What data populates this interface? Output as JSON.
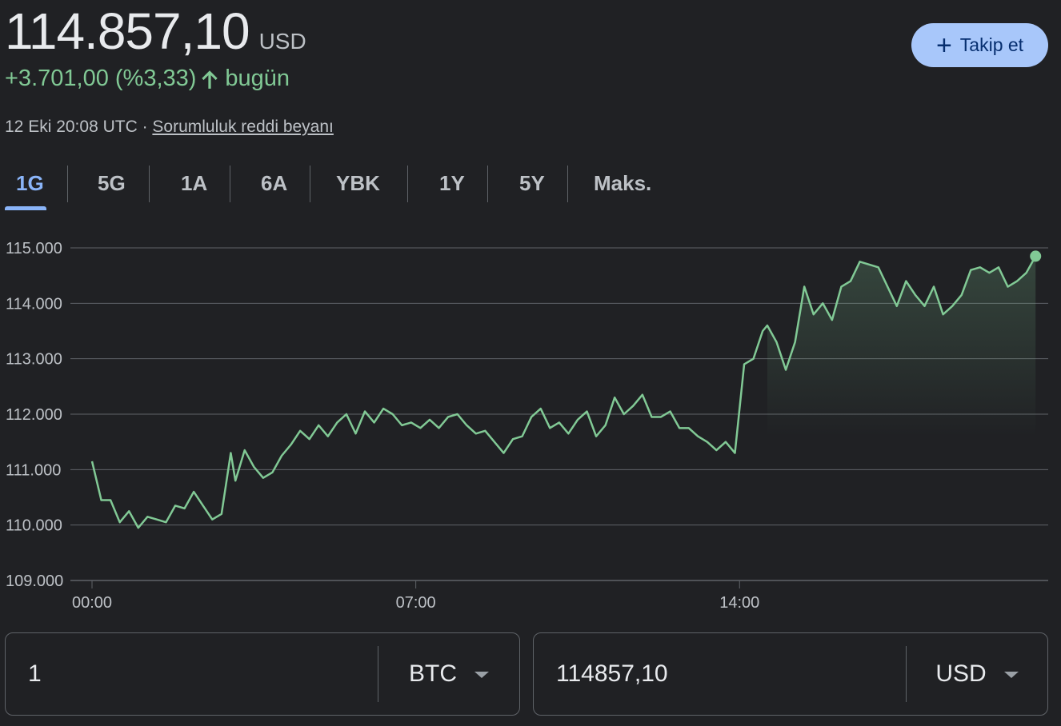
{
  "header": {
    "price": "114.857,10",
    "currency": "USD",
    "change_value": "+3.701,00 (%3,33)",
    "change_period": "bugün",
    "timestamp": "12 Eki 20:08 UTC · ",
    "disclaimer_link": "Sorumluluk reddi beyanı",
    "follow_label": "Takip et"
  },
  "tabs": [
    {
      "label": "1G",
      "active": true
    },
    {
      "label": "5G"
    },
    {
      "label": "1A"
    },
    {
      "label": "6A"
    },
    {
      "label": "YBK"
    },
    {
      "label": "1Y"
    },
    {
      "label": "5Y"
    },
    {
      "label": "Maks."
    }
  ],
  "colors": {
    "background": "#202124",
    "positive": "#81c995",
    "accent": "#8ab4f8",
    "button": "#a8c7fa"
  },
  "chart_data": {
    "type": "line",
    "y_ticks": [
      "115.000",
      "114.000",
      "113.000",
      "112.000",
      "111.000",
      "110.000",
      "109.000"
    ],
    "x_ticks": [
      "00:00",
      "07:00",
      "14:00"
    ],
    "x_tick_hours": [
      0,
      7,
      14
    ],
    "ylim": [
      109000,
      115000
    ],
    "xlim_hours": [
      0,
      20.5
    ],
    "series": [
      {
        "x": [
          0,
          0.2,
          0.4,
          0.6,
          0.8,
          1.0,
          1.2,
          1.4,
          1.6,
          1.8,
          2.0,
          2.2,
          2.4,
          2.6,
          2.8,
          3.0,
          3.1,
          3.3,
          3.5,
          3.7,
          3.9,
          4.1,
          4.3,
          4.5,
          4.7,
          4.9,
          5.1,
          5.3,
          5.5,
          5.7,
          5.9,
          6.1,
          6.3,
          6.5,
          6.7,
          6.9,
          7.1,
          7.3,
          7.5,
          7.7,
          7.9,
          8.1,
          8.3,
          8.5,
          8.7,
          8.9,
          9.1,
          9.3,
          9.5,
          9.7,
          9.9,
          10.1,
          10.3,
          10.5,
          10.7,
          10.9,
          11.1,
          11.3,
          11.5,
          11.7,
          11.9,
          12.1,
          12.3,
          12.5,
          12.7,
          12.9,
          13.1,
          13.3,
          13.5,
          13.7,
          13.9,
          14.1,
          14.3,
          14.5,
          14.6,
          14.8,
          15.0,
          15.2,
          15.4,
          15.6,
          15.8,
          16.0,
          16.2,
          16.4,
          16.6,
          16.8,
          17.0,
          17.2,
          17.4,
          17.6,
          17.8,
          18.0,
          18.2,
          18.4,
          18.6,
          18.8,
          19.0,
          19.2,
          19.4,
          19.6,
          19.8,
          20.0,
          20.2,
          20.4
        ],
        "y": [
          111150,
          110450,
          110450,
          110050,
          110250,
          109950,
          110150,
          110100,
          110050,
          110350,
          110300,
          110600,
          110350,
          110100,
          110200,
          111300,
          110800,
          111350,
          111050,
          110850,
          110950,
          111250,
          111450,
          111700,
          111550,
          111800,
          111600,
          111850,
          112000,
          111650,
          112050,
          111850,
          112100,
          112000,
          111800,
          111850,
          111750,
          111900,
          111750,
          111950,
          112000,
          111800,
          111650,
          111700,
          111500,
          111300,
          111550,
          111600,
          111950,
          112100,
          111750,
          111850,
          111650,
          111900,
          112050,
          111600,
          111800,
          112300,
          112000,
          112150,
          112350,
          111950,
          111950,
          112050,
          111750,
          111750,
          111600,
          111500,
          111350,
          111500,
          111300,
          112900,
          113000,
          113500,
          113600,
          113300,
          112800,
          113300,
          114300,
          113800,
          114000,
          113700,
          114300,
          114400,
          114750,
          114700,
          114650,
          114300,
          113950,
          114400,
          114150,
          113950,
          114300,
          113800,
          113950,
          114150,
          114600,
          114650,
          114550,
          114650,
          114300,
          114400,
          114550,
          114850
        ]
      }
    ],
    "last_value": 114857.1
  },
  "converter": {
    "left_value": "1",
    "left_currency": "BTC",
    "right_value": "114857,10",
    "right_currency": "USD"
  }
}
